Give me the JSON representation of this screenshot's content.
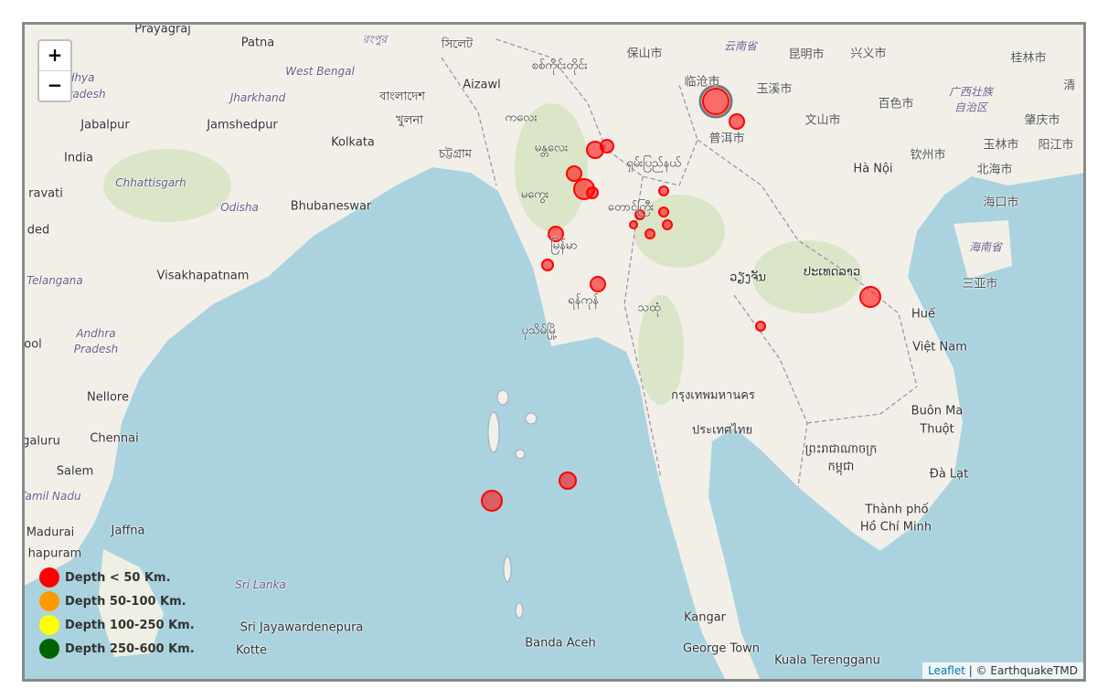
{
  "controls": {
    "zoom_in": "+",
    "zoom_out": "−"
  },
  "legend": [
    {
      "label": "Depth < 50 Km.",
      "color": "#ff0000"
    },
    {
      "label": "Depth 50-100 Km.",
      "color": "#ff9900"
    },
    {
      "label": "Depth 100-250 Km.",
      "color": "#ffff00"
    },
    {
      "label": "Depth 250-600 Km.",
      "color": "#006400"
    }
  ],
  "attribution": {
    "leaflet": "Leaflet",
    "separator": " | ",
    "credit": "© EarthquakeTMD"
  },
  "colors": {
    "ocean": "#aad3df",
    "land": "#f2efe9",
    "marker": "#ff0000"
  },
  "labels": [
    "Prayagraj",
    "Patna",
    "রংপুর",
    "সিলেট",
    "保山市",
    "云南省",
    "昆明市",
    "兴义市",
    "桂林市",
    "adhya",
    "radesh",
    "West Bengal",
    "Jharkhand",
    "বাংলাদেশ",
    "Aizawl",
    "စစ်ကိုင်းတိုင်း",
    "临沧市",
    "玉溪市",
    "百色市",
    "广西壮族",
    "自治区",
    "清",
    "Jabalpur",
    "Jamshedpur",
    "খুলনা",
    "ကလေး",
    "文山市",
    "普洱市",
    "肇庆市",
    "Kolkata",
    "চট্টগ্রাম",
    "မန္တလေး",
    "India",
    "Chhattisgarh",
    "ရှမ်းပြည်နယ်",
    "Hà Nội",
    "玉林市",
    "阳江市",
    "钦州市",
    "北海市",
    "ravati",
    "Odisha",
    "Bhubaneswar",
    "မကွေး",
    "တောင်ကြီး",
    "海口市",
    "ded",
    "海南省",
    "Visakhapatnam",
    "Telangana",
    "မြန်မာ",
    "ວຽງຈັນ",
    "ປະເທດລາວ",
    "三亚市",
    "Andhra",
    "Pradesh",
    "ool",
    "ရန်ကုန်",
    "သထုံ",
    "ပုသိမ်မြို့",
    "Huế",
    "Việt Nam",
    "Nellore",
    "กรุงเทพมหานคร",
    "Buôn Ma",
    "Thuột",
    "ประเทศไทย",
    "galuru",
    "Chennai",
    "ព្រះរាជាណាចក្រ",
    "កម្ពុជា",
    "Salem",
    "Đà Lạt",
    "Tamil Nadu",
    "Thành phố",
    "Hồ Chí Minh",
    "Madurai",
    "Jaffna",
    "hapuram",
    "Sri Lanka",
    "Sri Jayawardenepura",
    "Kotte",
    "Kangar",
    "Banda Aceh",
    "George Town",
    "Kuala Terengganu"
  ]
}
